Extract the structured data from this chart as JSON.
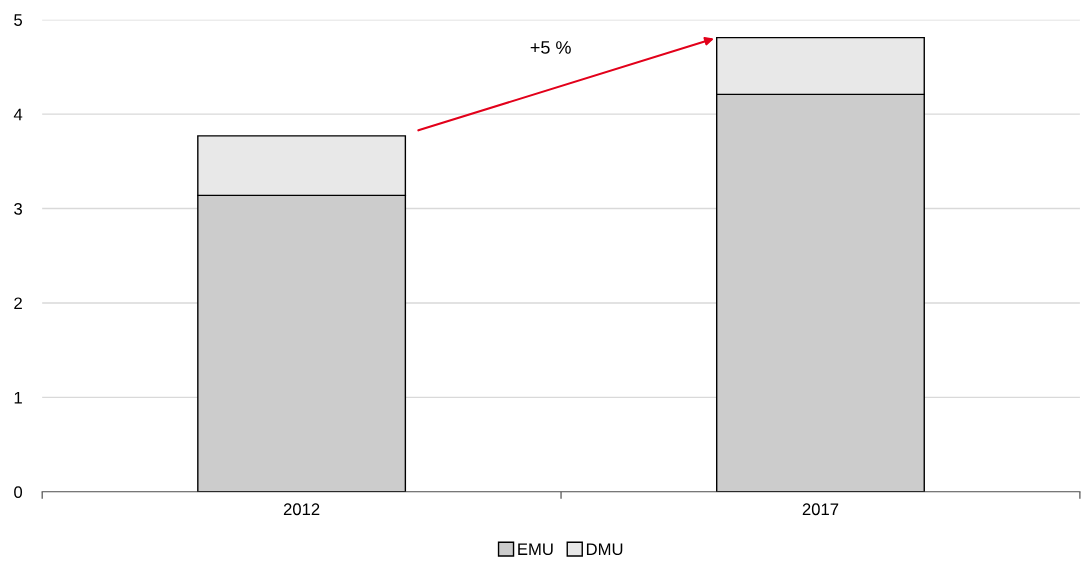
{
  "chart_data": {
    "type": "bar",
    "stacked": true,
    "categories": [
      "2012",
      "2017"
    ],
    "series": [
      {
        "name": "EMU",
        "color": "#cccccc",
        "values": [
          3.14,
          4.21
        ]
      },
      {
        "name": "DMU",
        "color": "#e8e8e8",
        "values": [
          0.63,
          0.6
        ]
      }
    ],
    "ylim": [
      0,
      5
    ],
    "yticks": [
      0,
      1,
      2,
      3,
      4,
      5
    ],
    "grid": "y",
    "legend": "bottom",
    "annotations": [
      "+5 %"
    ]
  }
}
